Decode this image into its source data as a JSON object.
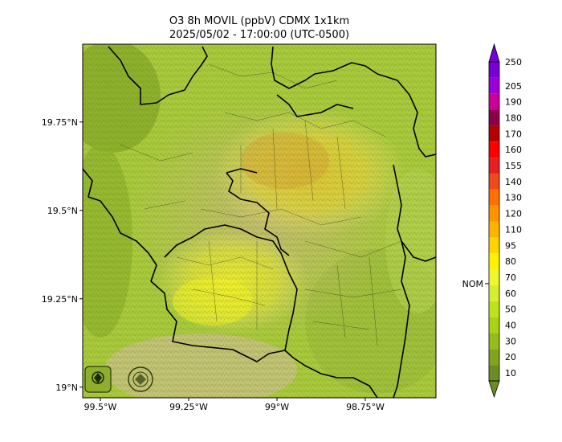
{
  "title": {
    "line1": "O3 8h MOVIL (ppbV) CDMX 1x1km",
    "line2": "2025/05/02 - 17:00:00 (UTC-0500)"
  },
  "map": {
    "lat_ticks": [
      "19.75°N",
      "19.5°N",
      "19.25°N",
      "19°N"
    ],
    "lon_ticks": [
      "99.5°W",
      "99.25°W",
      "99°W",
      "98.75°W"
    ],
    "lat_values": [
      19.75,
      19.5,
      19.25,
      19.0
    ],
    "lon_values": [
      -99.5,
      -99.25,
      -99.0,
      -98.75
    ],
    "lat_range": [
      18.97,
      19.97
    ],
    "lon_range": [
      -99.55,
      -98.55
    ],
    "field_range_ppbv": [
      20,
      80
    ],
    "logos": [
      "SEDEMA",
      "CIUDAD DE MÉXICO"
    ]
  },
  "colorbar": {
    "levels": [
      10,
      20,
      30,
      40,
      50,
      60,
      70,
      80,
      95,
      110,
      120,
      130,
      140,
      155,
      160,
      170,
      180,
      190,
      205,
      250
    ],
    "labels": [
      "10",
      "20",
      "30",
      "40",
      "50",
      "60",
      "70",
      "80",
      "95",
      "110",
      "120",
      "130",
      "140",
      "155",
      "160",
      "170",
      "180",
      "190",
      "205",
      "250"
    ],
    "colors": [
      "#6b8e23",
      "#7fa51e",
      "#94bc1a",
      "#a9d316",
      "#bfe31a",
      "#d7ee2e",
      "#eef72c",
      "#fff200",
      "#ffd400",
      "#ffb300",
      "#ff9200",
      "#ff7000",
      "#f04a1a",
      "#e62020",
      "#ff0000",
      "#b40000",
      "#8b0047",
      "#cc0099",
      "#9b00d6",
      "#7700d8"
    ],
    "nom_label": "NOM",
    "nom_value": 70
  }
}
